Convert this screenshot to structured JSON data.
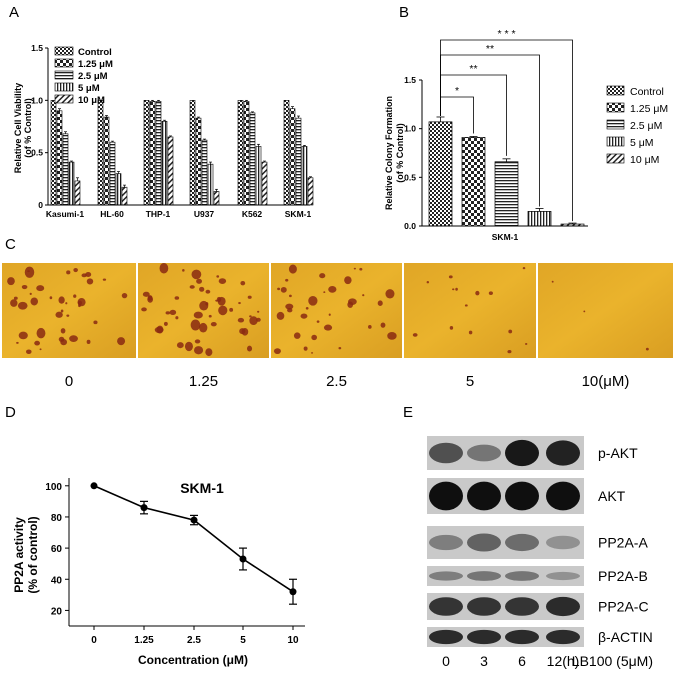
{
  "panels": {
    "A": "A",
    "B": "B",
    "C": "C",
    "D": "D",
    "E": "E"
  },
  "legend": {
    "entries": [
      "Control",
      "1.25 μM",
      "2.5 μM",
      "5 μM",
      "10 μM"
    ]
  },
  "chart_data": [
    {
      "panel": "A",
      "type": "bar",
      "ylabel": "Relative Cell Viability (of % Control)",
      "ylabel_lines": [
        "Relative Cell Viability",
        "(of % Control)"
      ],
      "categories": [
        "Kasumi-1",
        "HL-60",
        "THP-1",
        "U937",
        "K562",
        "SKM-1"
      ],
      "ylim": [
        0,
        1.5
      ],
      "yticks": [
        "0",
        "0.5",
        "1.0",
        "1.5"
      ],
      "series": [
        {
          "name": "Control",
          "values": [
            1.0,
            1.0,
            1.0,
            1.0,
            1.0,
            1.0
          ],
          "err": [
            0,
            0,
            0,
            0,
            0,
            0
          ]
        },
        {
          "name": "1.25 μM",
          "values": [
            0.9,
            0.84,
            0.99,
            0.83,
            0.99,
            0.92
          ],
          "err": [
            0.02,
            0.015,
            0.01,
            0.01,
            0.01,
            0.02
          ]
        },
        {
          "name": "2.5 μM",
          "values": [
            0.68,
            0.6,
            0.99,
            0.62,
            0.88,
            0.83
          ],
          "err": [
            0.02,
            0.01,
            0.01,
            0.01,
            0.01,
            0.02
          ]
        },
        {
          "name": "5 μM",
          "values": [
            0.41,
            0.3,
            0.8,
            0.39,
            0.56,
            0.56
          ],
          "err": [
            0.01,
            0.02,
            0.01,
            0.02,
            0.02,
            0.01
          ]
        },
        {
          "name": "10 μM",
          "values": [
            0.23,
            0.17,
            0.65,
            0.13,
            0.41,
            0.26
          ],
          "err": [
            0.03,
            0.02,
            0.01,
            0.02,
            0.01,
            0.01
          ]
        }
      ]
    },
    {
      "panel": "B",
      "type": "bar",
      "ylabel": "Relative Colony Formation (of % Control)",
      "ylabel_lines": [
        "Relative Colony Formation",
        "(of % Control)"
      ],
      "categories": [
        "SKM-1"
      ],
      "ylim": [
        0,
        1.5
      ],
      "yticks": [
        "0.0",
        "0.5",
        "1.0",
        "1.5"
      ],
      "series": [
        {
          "name": "Control",
          "values": [
            1.07
          ],
          "err": [
            0.05
          ]
        },
        {
          "name": "1.25 μM",
          "values": [
            0.91
          ],
          "err": [
            0.01
          ]
        },
        {
          "name": "2.5 μM",
          "values": [
            0.66
          ],
          "err": [
            0.03
          ]
        },
        {
          "name": "5 μM",
          "values": [
            0.15
          ],
          "err": [
            0.03
          ]
        },
        {
          "name": "10 μM",
          "values": [
            0.02
          ],
          "err": [
            0.01
          ]
        }
      ],
      "significance": [
        "*",
        "**",
        "**",
        "* * *"
      ]
    },
    {
      "panel": "D",
      "type": "line",
      "title": "SKM-1",
      "xlabel": "Concentration (μM)",
      "ylabel": "PP2A activity (% of control)",
      "ylabel_lines": [
        "PP2A activity",
        "(% of control)"
      ],
      "x": [
        "0",
        "1.25",
        "2.5",
        "5",
        "10"
      ],
      "y": [
        100,
        86,
        78,
        53,
        32
      ],
      "err": [
        0,
        4,
        3,
        7,
        8
      ],
      "ylim": [
        20,
        100
      ],
      "yticks": [
        "20",
        "40",
        "60",
        "80",
        "100"
      ]
    }
  ],
  "colonies": {
    "labels": [
      "0",
      "1.25",
      "2.5",
      "5",
      "10(μM)"
    ],
    "counts": [
      40,
      48,
      34,
      14,
      3
    ]
  },
  "western": {
    "rows": [
      {
        "label": "p-AKT",
        "intensity": [
          0.65,
          0.45,
          0.95,
          0.9
        ]
      },
      {
        "label": "AKT",
        "intensity": [
          1,
          1,
          1,
          1
        ]
      },
      {
        "label": "PP2A-A",
        "intensity": [
          0.4,
          0.55,
          0.5,
          0.3
        ]
      },
      {
        "label": "PP2A-B",
        "intensity": [
          0.4,
          0.45,
          0.45,
          0.3
        ]
      },
      {
        "label": "PP2A-C",
        "intensity": [
          0.8,
          0.8,
          0.8,
          0.85
        ]
      },
      {
        "label": "β-ACTIN",
        "intensity": [
          0.85,
          0.85,
          0.85,
          0.85
        ]
      }
    ],
    "lanes": [
      "0",
      "3",
      "6",
      "12(h)"
    ],
    "treatment": "LB100 (5μM)"
  }
}
